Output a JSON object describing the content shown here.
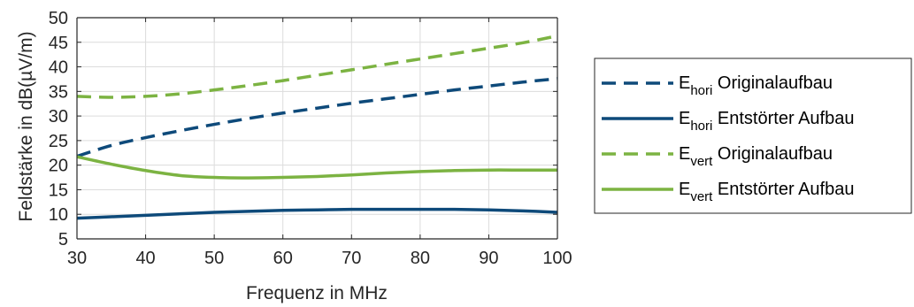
{
  "chart_data": {
    "type": "line",
    "xlabel": "Frequenz in MHz",
    "ylabel": "Feldstärke in dB(µV/m)",
    "xlim": [
      30,
      100
    ],
    "ylim": [
      5,
      50
    ],
    "xticks": [
      30,
      40,
      50,
      60,
      70,
      80,
      90,
      100
    ],
    "yticks": [
      5,
      10,
      15,
      20,
      25,
      30,
      35,
      40,
      45,
      50
    ],
    "grid": true,
    "legend_position": "right-outside",
    "series": [
      {
        "name": "E_hori Originalaufbau",
        "label_main": "E",
        "label_sub": "hori",
        "label_rest": "Originalaufbau",
        "color": "#0e4a7a",
        "dash": true,
        "x": [
          30,
          35,
          40,
          45,
          50,
          55,
          60,
          65,
          70,
          75,
          80,
          85,
          90,
          95,
          100
        ],
        "y": [
          21.8,
          24.0,
          25.6,
          27.0,
          28.3,
          29.5,
          30.6,
          31.6,
          32.6,
          33.5,
          34.4,
          35.3,
          36.1,
          36.9,
          37.6
        ]
      },
      {
        "name": "E_hori Entstörter Aufbau",
        "label_main": "E",
        "label_sub": "hori",
        "label_rest": "Entstörter Aufbau",
        "color": "#0e4a7a",
        "dash": false,
        "x": [
          30,
          35,
          40,
          45,
          50,
          55,
          60,
          65,
          70,
          75,
          80,
          85,
          90,
          95,
          100
        ],
        "y": [
          9.2,
          9.5,
          9.8,
          10.1,
          10.4,
          10.6,
          10.8,
          10.9,
          11.0,
          11.0,
          11.0,
          11.0,
          10.9,
          10.7,
          10.4
        ]
      },
      {
        "name": "E_vert Originalaufbau",
        "label_main": "E",
        "label_sub": "vert",
        "label_rest": "Originalaufbau",
        "color": "#7cb342",
        "dash": true,
        "x": [
          30,
          35,
          40,
          45,
          50,
          55,
          60,
          65,
          70,
          75,
          80,
          85,
          90,
          95,
          100
        ],
        "y": [
          34.0,
          33.8,
          34.0,
          34.5,
          35.3,
          36.2,
          37.2,
          38.3,
          39.4,
          40.5,
          41.6,
          42.7,
          43.8,
          44.9,
          46.3
        ]
      },
      {
        "name": "E_vert Entstörter Aufbau",
        "label_main": "E",
        "label_sub": "vert",
        "label_rest": "Entstörter Aufbau",
        "color": "#7cb342",
        "dash": false,
        "x": [
          30,
          35,
          40,
          45,
          50,
          55,
          60,
          65,
          70,
          75,
          80,
          85,
          90,
          95,
          100
        ],
        "y": [
          21.7,
          20.2,
          18.9,
          17.9,
          17.5,
          17.4,
          17.5,
          17.7,
          18.0,
          18.4,
          18.7,
          18.9,
          19.0,
          19.0,
          19.0
        ]
      }
    ]
  }
}
